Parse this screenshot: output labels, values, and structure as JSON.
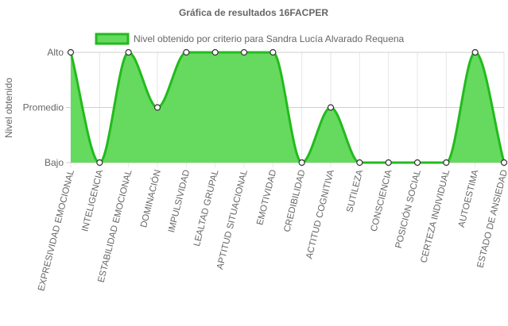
{
  "chart_data": {
    "type": "area",
    "title": "Gráfica de resultados 16FACPER",
    "ylabel": "Nivel obtenido",
    "xlabel": "",
    "y_categories": [
      "Bajo",
      "Promedio",
      "Alto"
    ],
    "categories": [
      "EXPRESIVIDAD EMOCIONAL",
      "INTELIGENCIA",
      "ESTABILIDAD EMOCIONAL",
      "DOMINACIÓN",
      "IMPULSIVIDAD",
      "LEALTAD GRUPAL",
      "APTITUD SITUACIONAL",
      "EMOTIVIDAD",
      "CREDIBILIDAD",
      "ACTITUD COGNITIVA",
      "SUTILEZA",
      "CONSCIENCIA",
      "POSICIÓN SOCIAL",
      "CERTEZA INDIVIDUAL",
      "AUTOESTIMA",
      "ESTADO DE ANSIEDAD"
    ],
    "series": [
      {
        "name": "Nivel obtenido por criterio para Sandra Lucía Alvarado Requena",
        "values": [
          "Alto",
          "Bajo",
          "Alto",
          "Promedio",
          "Alto",
          "Alto",
          "Alto",
          "Alto",
          "Bajo",
          "Promedio",
          "Bajo",
          "Bajo",
          "Bajo",
          "Bajo",
          "Alto",
          "Bajo"
        ],
        "color": "#22bb1c",
        "fill": "#66d95f"
      }
    ],
    "grid": true,
    "legend": "top"
  }
}
